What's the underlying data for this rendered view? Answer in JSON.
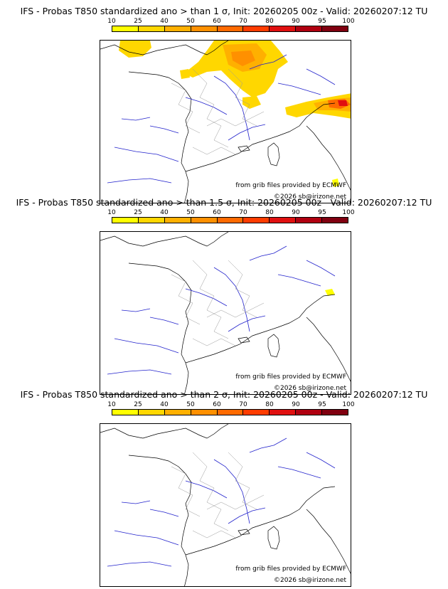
{
  "figure": {
    "panels": [
      {
        "title": "IFS - Probas T850  standardized ano > than 1 σ, Init: 20260205 00z - Valid: 20260207:12 TU",
        "source_credit": "from grib files provided by ECMWF",
        "copyright": "©2026 sb@irizone.net"
      },
      {
        "title": "IFS - Probas T850  standardized ano > than 1.5 σ, Init: 20260205 00z - Valid: 20260207:12 TU",
        "source_credit": "from grib files provided by ECMWF",
        "copyright": "©2026 sb@irizone.net"
      },
      {
        "title": "IFS - Probas T850  standardized ano > than 2 σ, Init: 20260205 00z - Valid: 20260207:12 TU",
        "source_credit": "from grib files provided by ECMWF",
        "copyright": "©2026 sb@irizone.net"
      }
    ],
    "colorbar": {
      "ticks": [
        "10",
        "25",
        "40",
        "50",
        "60",
        "70",
        "80",
        "90",
        "95",
        "100"
      ],
      "colors": [
        "#ffff00",
        "#ffd700",
        "#ffb000",
        "#ff9000",
        "#ff6a00",
        "#ff3c00",
        "#e01010",
        "#b00010",
        "#800010"
      ]
    }
  }
}
